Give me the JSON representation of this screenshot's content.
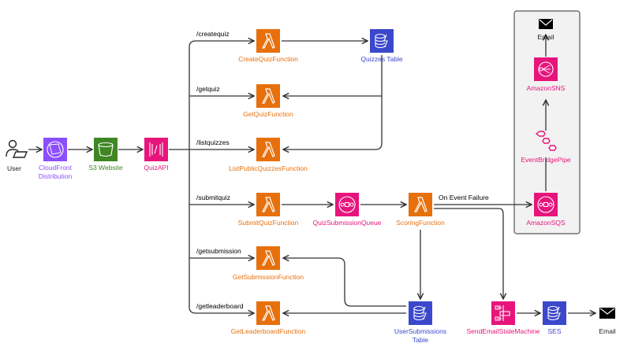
{
  "colors": {
    "lambda": "#E7700D",
    "dynamodb": "#3B48CC",
    "pink": "#E7157B",
    "purple": "#8C4FFF",
    "s3": "#3F8624",
    "edge": "#333333",
    "group_bg": "#F2F2F2"
  },
  "nodes": {
    "user": {
      "label": "User",
      "icon": "user-laptop-icon"
    },
    "cloudfront": {
      "label1": "CloudFront",
      "label2": "Distribution",
      "icon": "cloudfront-icon"
    },
    "s3": {
      "label": "S3 Website",
      "icon": "s3-bucket-icon"
    },
    "quizapi": {
      "label": "QuizAPI",
      "icon": "api-gateway-icon"
    },
    "create_quiz": {
      "label": "CreateQuizFunction",
      "icon": "lambda-icon"
    },
    "quizzes_table": {
      "label": "Quizzes Table",
      "icon": "dynamodb-icon"
    },
    "get_quiz": {
      "label": "GetQuizFunction",
      "icon": "lambda-icon"
    },
    "list_quizzes": {
      "label": "ListPublicQuizzesFunction",
      "icon": "lambda-icon"
    },
    "submit_quiz": {
      "label": "SubmitQuizFunction",
      "icon": "lambda-icon"
    },
    "submission_queue": {
      "label": "QuizSubmissionQueue",
      "icon": "sqs-icon"
    },
    "scoring": {
      "label": "ScoringFunction",
      "icon": "lambda-icon"
    },
    "get_submission": {
      "label": "GetSubmissionFunction",
      "icon": "lambda-icon"
    },
    "get_leaderboard": {
      "label": "GetLeaderboardFunction",
      "icon": "lambda-icon"
    },
    "user_submissions": {
      "label1": "UserSubmissions",
      "label2": "Table",
      "icon": "dynamodb-icon"
    },
    "send_email_sm": {
      "label": "SendEmailStateMachine",
      "icon": "step-functions-icon"
    },
    "ses": {
      "label": "SES",
      "icon": "dynamodb-icon"
    },
    "email_bottom": {
      "label": "Email",
      "icon": "envelope-icon"
    },
    "amazon_sqs": {
      "label": "AmazonSQS",
      "icon": "sqs-icon"
    },
    "eventbridge_pipe": {
      "label": "EventBridgePipe",
      "icon": "eventbridge-pipe-icon"
    },
    "amazon_sns": {
      "label": "AmazonSNS",
      "icon": "sns-icon"
    },
    "email_top": {
      "label": "Email",
      "icon": "envelope-icon"
    }
  },
  "routes": {
    "createquiz": "/createquiz",
    "getquiz": "/getquiz",
    "listquizzes": "/listquizzes",
    "submitquiz": "/submitquiz",
    "getsubmission": "/getsubmission",
    "getleaderboard": "/getleaderboard"
  },
  "edge_labels": {
    "on_failure": "On Event Failure"
  }
}
